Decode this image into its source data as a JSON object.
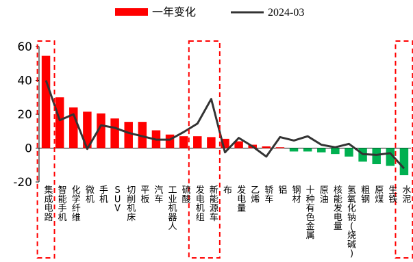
{
  "chart_data": {
    "type": "bar",
    "categories": [
      "集成电路",
      "智能手机",
      "化学纤维",
      "微机",
      "手机",
      "SUV",
      "切削机床",
      "平板",
      "汽车",
      "工业机器人",
      "硫酸",
      "发电机组",
      "新能源车",
      "布",
      "发电量",
      "乙烯",
      "轿车",
      "铝",
      "钢材",
      "十种有色金属",
      "原油",
      "核能发电量",
      "氢氧化钠(烧碱)",
      "粗钢",
      "原煤",
      "生铁",
      "水泥"
    ],
    "series": [
      {
        "name": "一年变化",
        "type": "bar",
        "color": "#ff0000",
        "negative_color": "#00b050",
        "values": [
          54.5,
          30,
          24,
          21.5,
          20.5,
          17.5,
          15.5,
          15.5,
          10.5,
          8,
          7,
          7,
          6.5,
          5.5,
          4,
          2,
          1,
          0.5,
          -2,
          -2,
          -2.5,
          -3.5,
          -5,
          -8,
          -9.5,
          -10.5,
          -16
        ]
      },
      {
        "name": "2024-03",
        "type": "line",
        "color": "#333333",
        "values": [
          40,
          16.5,
          20,
          -0.5,
          13.5,
          12,
          9,
          7,
          5,
          5,
          9.5,
          14.5,
          29,
          -2.5,
          6,
          1,
          -5,
          6.5,
          4.5,
          7,
          2,
          0.5,
          2.5,
          -3.5,
          -4,
          -3,
          -12
        ]
      }
    ],
    "ylim": [
      -20,
      60
    ],
    "yticks": [
      -20,
      0,
      20,
      40,
      60
    ],
    "legend_position": "top",
    "highlight_groups": [
      {
        "from": "集成电路",
        "to": "集成电路"
      },
      {
        "from": "发电机组",
        "to": "新能源车"
      },
      {
        "from": "水泥",
        "to": "水泥"
      }
    ],
    "highlight_color": "#ff0000"
  }
}
